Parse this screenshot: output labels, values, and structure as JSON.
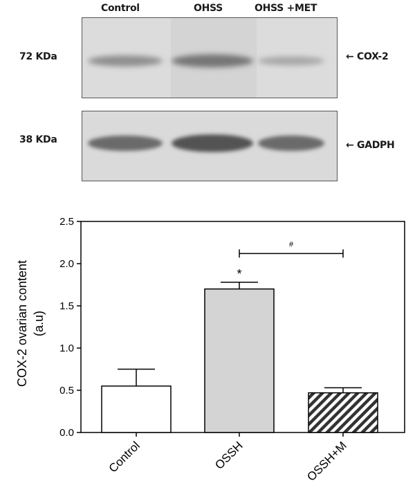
{
  "blot": {
    "lanes": [
      "Control",
      "OHSS",
      "OHSS +MET"
    ],
    "rows": [
      {
        "weight": "72 KDa",
        "protein": "← COX-2",
        "intensity": [
          0.38,
          0.55,
          0.22
        ]
      },
      {
        "weight": "38 KDa",
        "protein": "← GADPH",
        "intensity": [
          0.62,
          0.78,
          0.62
        ]
      }
    ]
  },
  "chart_data": {
    "type": "bar",
    "categories": [
      "Control",
      "OSSH",
      "OSSH+M"
    ],
    "values": [
      0.55,
      1.7,
      0.47
    ],
    "errors": [
      0.2,
      0.08,
      0.06
    ],
    "bar_fills": [
      "white",
      "light-gray",
      "diagonal-hatch"
    ],
    "ylabel": "COX-2 ovarian content\n(a.u)",
    "ylim": [
      0,
      2.5
    ],
    "yticks": [
      "0.0",
      "0.5",
      "1.0",
      "1.5",
      "2.0",
      "2.5"
    ],
    "annotations": [
      {
        "text": "*",
        "category": "OSSH"
      },
      {
        "text": "#",
        "between": [
          "OSSH",
          "OSSH+M"
        ]
      }
    ],
    "grid": false,
    "legend": "none"
  }
}
